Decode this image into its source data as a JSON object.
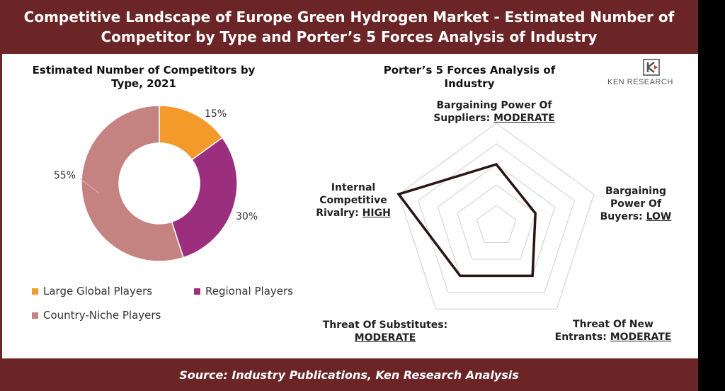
{
  "header": {
    "title": "Competitive Landscape of Europe Green Hydrogen Market - Estimated Number of Competitor by Type and Porter’s 5 Forces Analysis of Industry"
  },
  "footer": {
    "source": "Source: Industry Publications, Ken Research Analysis"
  },
  "logo": {
    "text": "KEN RESEARCH"
  },
  "chart_data": [
    {
      "type": "pie",
      "variant": "donut",
      "title": "Estimated Number of Competitors by Type, 2021",
      "categories": [
        "Large Global Players",
        "Regional Players",
        "Country-Niche Players"
      ],
      "values": [
        15,
        30,
        55
      ],
      "labels": [
        "15%",
        "30%",
        "55%"
      ],
      "colors": [
        "#f39a2b",
        "#9b2f7e",
        "#c48381"
      ],
      "legend": "bottom"
    },
    {
      "type": "radar",
      "title": "Porter’s 5 Forces Analysis of Industry",
      "axes": [
        {
          "name": "Bargaining Power Of Suppliers:",
          "level": "MODERATE"
        },
        {
          "name": "Bargaining Power Of Buyers:",
          "level": "LOW"
        },
        {
          "name": "Threat Of New Entrants:",
          "level": "MODERATE"
        },
        {
          "name": "Threat Of Substitutes:",
          "level": "MODERATE"
        },
        {
          "name": "Internal Competitive Rivalry:",
          "level": "HIGH"
        }
      ],
      "values": [
        3,
        2,
        3,
        3,
        5
      ],
      "rmax": 5,
      "grid_levels": 5,
      "line_color": "#2a1414"
    }
  ]
}
